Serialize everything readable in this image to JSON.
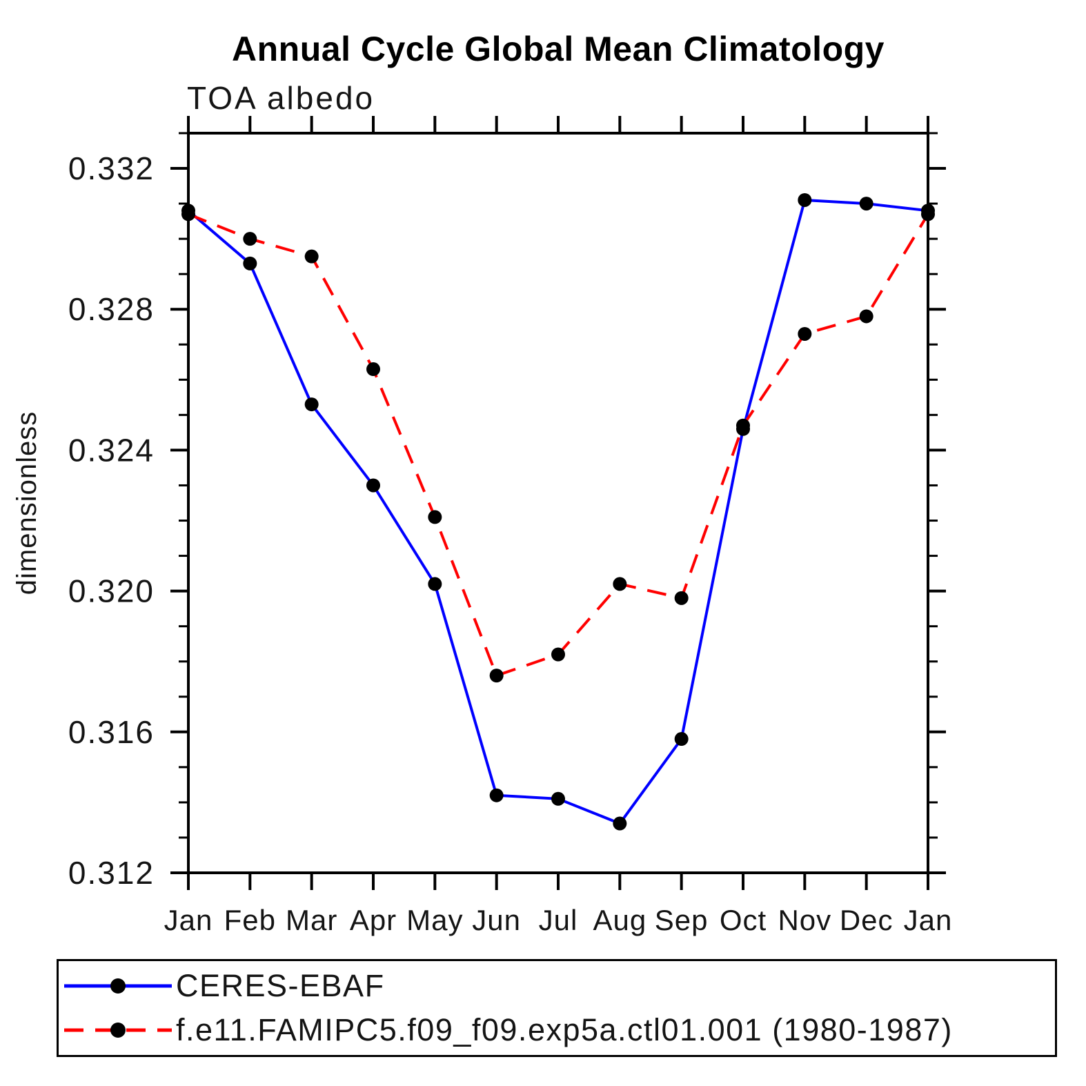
{
  "title": "Annual Cycle Global Mean Climatology",
  "subtitle": "TOA albedo",
  "ylabel": "dimensionless",
  "legend": {
    "items": [
      {
        "label": "CERES-EBAF",
        "color": "#0000ff",
        "style": "solid",
        "marker_color": "#000000"
      },
      {
        "label": "f.e11.FAMIPC5.f09_f09.exp5a.ctl01.001 (1980-1987)",
        "color": "#ff0000",
        "style": "dashed",
        "marker_color": "#000000"
      }
    ],
    "position": "bottom"
  },
  "chart_data": {
    "type": "line",
    "categories": [
      "Jan",
      "Feb",
      "Mar",
      "Apr",
      "May",
      "Jun",
      "Jul",
      "Aug",
      "Sep",
      "Oct",
      "Nov",
      "Dec",
      "Jan"
    ],
    "series": [
      {
        "name": "CERES-EBAF",
        "color": "#0000ff",
        "style": "solid",
        "values": [
          0.3308,
          0.3293,
          0.3253,
          0.323,
          0.3202,
          0.3142,
          0.3141,
          0.3134,
          0.3158,
          0.3246,
          0.3311,
          0.331,
          0.3308
        ]
      },
      {
        "name": "f.e11.FAMIPC5.f09_f09.exp5a.ctl01.001 (1980-1987)",
        "color": "#ff0000",
        "style": "dashed",
        "values": [
          0.3307,
          0.33,
          0.3295,
          0.3263,
          0.3221,
          0.3176,
          0.3182,
          0.3202,
          0.3198,
          0.3247,
          0.3273,
          0.3278,
          0.3307
        ]
      }
    ],
    "marker": {
      "shape": "circle",
      "color": "#000000"
    },
    "xlabel": "",
    "ylim": [
      0.312,
      0.333
    ],
    "yticks_major": [
      0.312,
      0.316,
      0.32,
      0.324,
      0.328,
      0.332
    ],
    "ytick_labels": [
      "0.312",
      "0.316",
      "0.320",
      "0.324",
      "0.328",
      "0.332"
    ],
    "yminor_step": 0.001,
    "grid": false,
    "legend_position": "bottom"
  }
}
